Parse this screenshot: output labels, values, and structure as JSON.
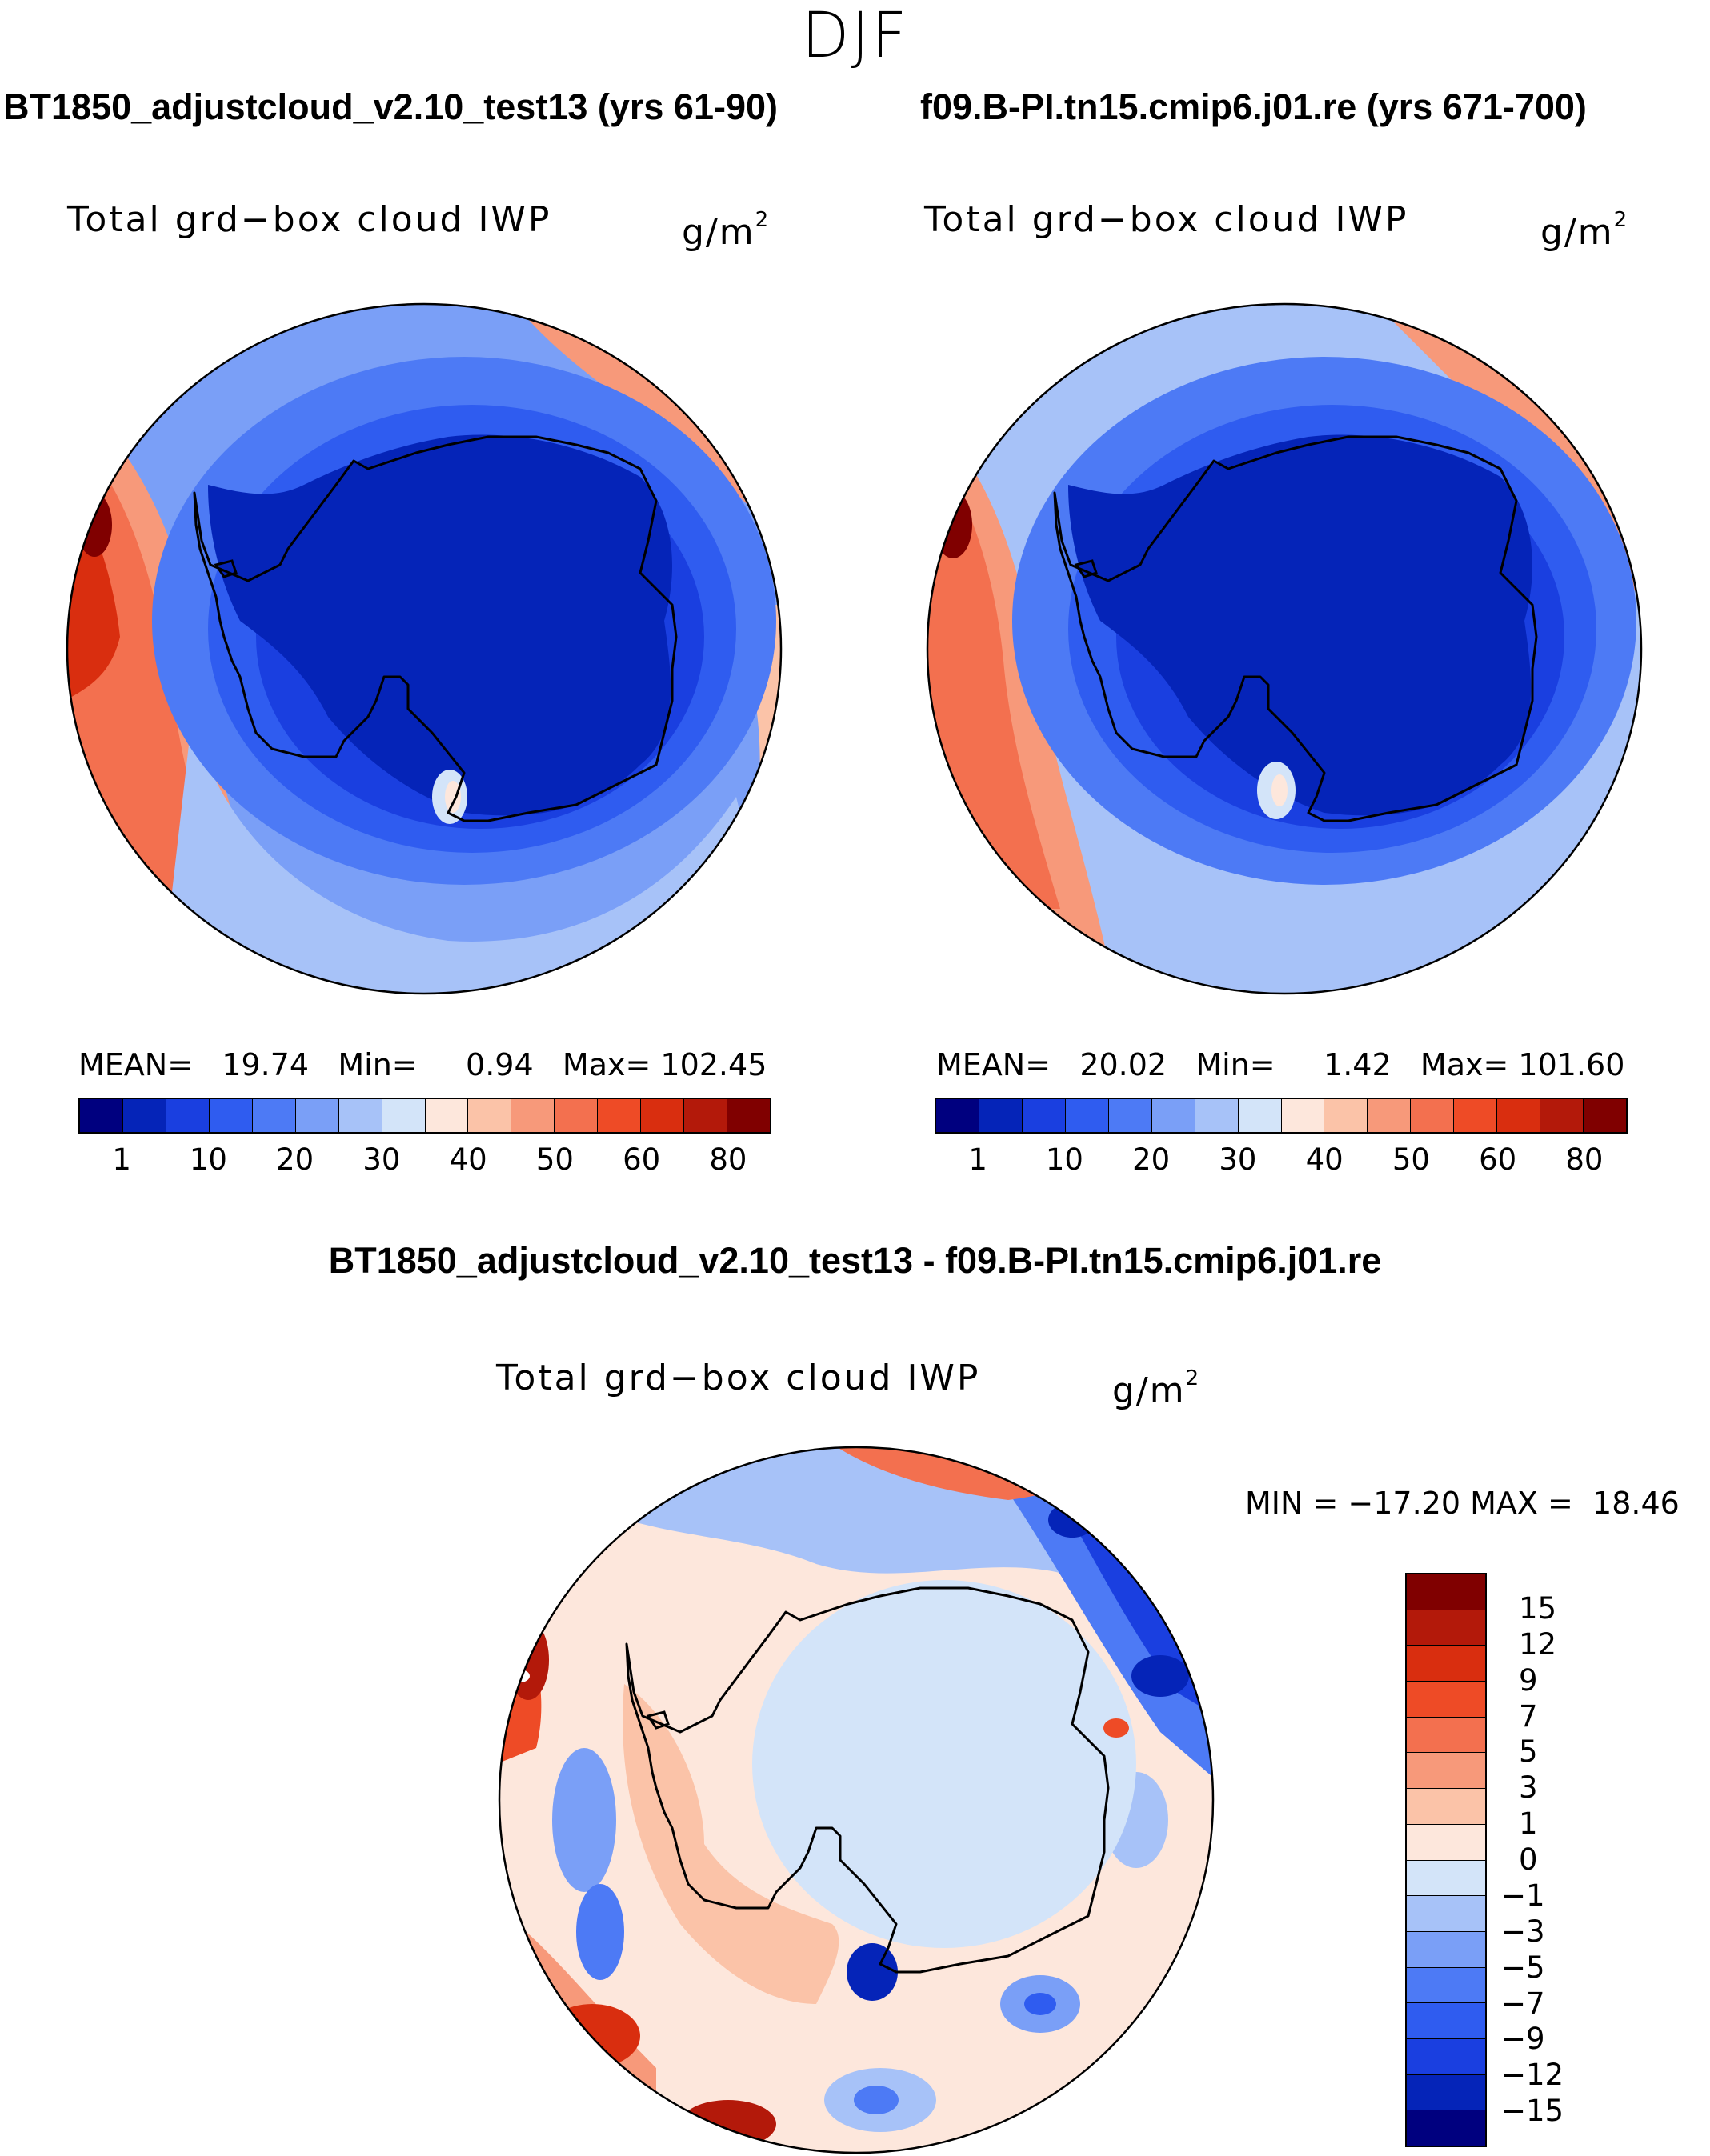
{
  "chart_data": [
    {
      "type": "heatmap",
      "projection": "south-polar-stereographic",
      "title": "BT1850_adjustcloud_v2.10_test13 (yrs 61-90)",
      "variable": "Total grd−box cloud IWP",
      "units": "g/m",
      "units_exp": "2",
      "mean_label": "MEAN=",
      "mean": "19.74",
      "min_label": "Min=",
      "min": "0.94",
      "max_label": "Max=",
      "max": "102.45",
      "colorbar_ticks": [
        "1",
        "10",
        "20",
        "30",
        "40",
        "50",
        "60",
        "80"
      ],
      "colors": [
        "#00007f",
        "#0524b8",
        "#1a3fe0",
        "#2f5cf0",
        "#4d7af5",
        "#7a9ff7",
        "#a7c2f8",
        "#d3e4f9",
        "#fde7dc",
        "#fbc3a8",
        "#f7997a",
        "#f3704f",
        "#ee4b26",
        "#d92e0f",
        "#b3190a",
        "#800000"
      ]
    },
    {
      "type": "heatmap",
      "projection": "south-polar-stereographic",
      "title": "f09.B-PI.tn15.cmip6.j01.re (yrs 671-700)",
      "variable": "Total grd−box cloud IWP",
      "units": "g/m",
      "units_exp": "2",
      "mean_label": "MEAN=",
      "mean": "20.02",
      "min_label": "Min=",
      "min": "1.42",
      "max_label": "Max=",
      "max": "101.60",
      "colorbar_ticks": [
        "1",
        "10",
        "20",
        "30",
        "40",
        "50",
        "60",
        "80"
      ],
      "colors": [
        "#00007f",
        "#0524b8",
        "#1a3fe0",
        "#2f5cf0",
        "#4d7af5",
        "#7a9ff7",
        "#a7c2f8",
        "#d3e4f9",
        "#fde7dc",
        "#fbc3a8",
        "#f7997a",
        "#f3704f",
        "#ee4b26",
        "#d92e0f",
        "#b3190a",
        "#800000"
      ]
    },
    {
      "type": "heatmap",
      "projection": "south-polar-stereographic",
      "title": "BT1850_adjustcloud_v2.10_test13 - f09.B-PI.tn15.cmip6.j01.re",
      "variable": "Total grd−box cloud IWP",
      "units": "g/m",
      "units_exp": "2",
      "minmax_text": "MIN = −17.20 MAX =  18.46",
      "colorbar_ticks": [
        "15",
        "12",
        "9",
        "7",
        "5",
        "3",
        "1",
        "0",
        "−1",
        "−3",
        "−5",
        "−7",
        "−9",
        "−12",
        "−15"
      ],
      "colors": [
        "#800000",
        "#b3190a",
        "#d92e0f",
        "#ee4b26",
        "#f3704f",
        "#f7997a",
        "#fbc3a8",
        "#fde7dc",
        "#d3e4f9",
        "#a7c2f8",
        "#7a9ff7",
        "#4d7af5",
        "#2f5cf0",
        "#1a3fe0",
        "#0524b8",
        "#00007f"
      ]
    }
  ],
  "figure": {
    "season": "DJF"
  }
}
